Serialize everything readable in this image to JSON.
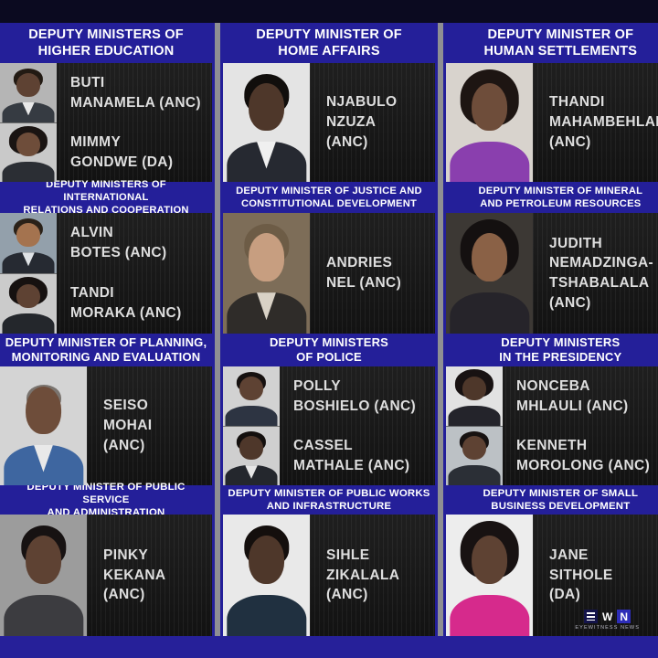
{
  "branding": {
    "logo_letters": [
      "E",
      "W",
      "N"
    ],
    "tagline": "EYEWITNESS NEWS"
  },
  "colors": {
    "page_blue": "#241f99",
    "header_blue": "#241f99",
    "top_strip": "#0b0a20",
    "bottom_strip": "#262099",
    "divider_gray": "#8f8f93",
    "panel_dark": "#161616",
    "header_text": "#ffffff",
    "name_text": "#dedede"
  },
  "columns": [
    {
      "sections": [
        {
          "title_lines": [
            "DEPUTY MINISTERS OF",
            "HIGHER EDUCATION"
          ],
          "members": [
            {
              "name_lines": [
                "BUTI",
                "MANAMELA (ANC)"
              ],
              "party": "ANC",
              "portrait": {
                "bg": "#b5b5b5",
                "skin": "#5e4233",
                "hair": "#221a13",
                "top": "#363b42",
                "shirt": "#e8e8e8",
                "style": "normal"
              }
            },
            {
              "name_lines": [
                "MIMMY",
                "GONDWE (DA)"
              ],
              "party": "DA",
              "portrait": {
                "bg": "#c9c9c9",
                "skin": "#6e4d3a",
                "hair": "#1a1412",
                "top": "#2b2e34",
                "style": "big"
              }
            }
          ]
        },
        {
          "title_lines": [
            "DEPUTY MINISTERS OF INTERNATIONAL",
            "RELATIONS AND COOPERATION"
          ],
          "members": [
            {
              "name_lines": [
                "ALVIN",
                "BOTES (ANC)"
              ],
              "party": "ANC",
              "portrait": {
                "bg": "#93a0ab",
                "skin": "#a4734f",
                "hair": "#2a2118",
                "top": "#262a32",
                "shirt": "#dfe3e6",
                "style": "normal"
              }
            },
            {
              "name_lines": [
                "TANDI",
                "MORAKA (ANC)"
              ],
              "party": "ANC",
              "portrait": {
                "bg": "#cbcbcb",
                "skin": "#5e4233",
                "hair": "#161110",
                "top": "#24272c",
                "style": "big"
              }
            }
          ]
        },
        {
          "title_lines": [
            "DEPUTY MINISTER OF PLANNING,",
            "MONITORING AND EVALUATION"
          ],
          "members": [
            {
              "name_lines": [
                "SEISO",
                "MOHAI",
                "(ANC)"
              ],
              "party": "ANC",
              "portrait": {
                "bg": "#d4d4d4",
                "skin": "#6e4d3a",
                "hair": "#30241b",
                "top": "#3e66a0",
                "shirt": "#e9e9e9",
                "style": "bald"
              }
            }
          ]
        },
        {
          "title_lines": [
            "DEPUTY MINISTER OF PUBLIC SERVICE",
            "AND ADMINISTRATION"
          ],
          "members": [
            {
              "name_lines": [
                "PINKY",
                "KEKANA",
                "(ANC)"
              ],
              "party": "ANC",
              "portrait": {
                "bg": "#9c9c9c",
                "skin": "#5e4233",
                "hair": "#171212",
                "top": "#3c3c40",
                "style": "normal"
              }
            }
          ]
        }
      ]
    },
    {
      "sections": [
        {
          "title_lines": [
            "DEPUTY MINISTER OF",
            "HOME AFFAIRS"
          ],
          "members": [
            {
              "name_lines": [
                "NJABULO",
                "NZUZA",
                "(ANC)"
              ],
              "party": "ANC",
              "portrait": {
                "bg": "#e4e4e4",
                "skin": "#4e372a",
                "hair": "#110e0c",
                "top": "#262931",
                "shirt": "#f0f0f0",
                "style": "normal"
              }
            }
          ]
        },
        {
          "title_lines": [
            "DEPUTY MINISTER OF JUSTICE AND",
            "CONSTITUTIONAL DEVELOPMENT"
          ],
          "members": [
            {
              "name_lines": [
                "ANDRIES",
                "NEL (ANC)"
              ],
              "party": "ANC",
              "portrait": {
                "bg": "#7d6d58",
                "skin": "#c79e80",
                "hair": "#6d5c46",
                "top": "#2f2c29",
                "shirt": "#d9d2c6",
                "style": "normal"
              }
            }
          ]
        },
        {
          "title_lines": [
            "DEPUTY MINISTERS",
            "OF POLICE"
          ],
          "members": [
            {
              "name_lines": [
                "POLLY",
                "BOSHIELO (ANC)"
              ],
              "party": "ANC",
              "portrait": {
                "bg": "#d2d2d2",
                "skin": "#5e4233",
                "hair": "#161110",
                "top": "#2d3442",
                "style": "normal"
              }
            },
            {
              "name_lines": [
                "CASSEL",
                "MATHALE (ANC)"
              ],
              "party": "ANC",
              "portrait": {
                "bg": "#cfcfcf",
                "skin": "#4e372a",
                "hair": "#130f0d",
                "top": "#24272d",
                "shirt": "#e6e6e6",
                "style": "normal"
              }
            }
          ]
        },
        {
          "title_lines": [
            "DEPUTY MINISTER OF PUBLIC WORKS",
            "AND INFRASTRUCTURE"
          ],
          "members": [
            {
              "name_lines": [
                "SIHLE",
                "ZIKALALA",
                "(ANC)"
              ],
              "party": "ANC",
              "portrait": {
                "bg": "#e9e9e9",
                "skin": "#4e372a",
                "hair": "#140f0d",
                "top": "#203040",
                "style": "normal"
              }
            }
          ]
        }
      ]
    },
    {
      "sections": [
        {
          "title_lines": [
            "DEPUTY MINISTER OF",
            "HUMAN SETTLEMENTS"
          ],
          "members": [
            {
              "name_lines": [
                "THANDI",
                "MAHAMBEHLALA",
                "(ANC)"
              ],
              "party": "ANC",
              "portrait": {
                "bg": "#d8d3cd",
                "skin": "#6e4d3a",
                "hair": "#1d1512",
                "top": "#8a3fae",
                "style": "big"
              }
            }
          ]
        },
        {
          "title_lines": [
            "DEPUTY MINISTER OF MINERAL",
            "AND PETROLEUM RESOURCES"
          ],
          "members": [
            {
              "name_lines": [
                "JUDITH",
                "NEMADZINGA-",
                "TSHABALALA",
                "(ANC)"
              ],
              "party": "ANC",
              "portrait": {
                "bg": "#3c3834",
                "skin": "#8a6146",
                "hair": "#141010",
                "top": "#26242a",
                "style": "big"
              }
            }
          ]
        },
        {
          "title_lines": [
            "DEPUTY MINISTERS",
            "IN THE PRESIDENCY"
          ],
          "members": [
            {
              "name_lines": [
                "NONCEBA",
                "MHLAULI (ANC)"
              ],
              "party": "ANC",
              "portrait": {
                "bg": "#e2e2e2",
                "skin": "#4e372a",
                "hair": "#181212",
                "top": "#24242b",
                "style": "big"
              }
            },
            {
              "name_lines": [
                "KENNETH",
                "MOROLONG (ANC)"
              ],
              "party": "ANC",
              "portrait": {
                "bg": "#bcc1c5",
                "skin": "#5e4233",
                "hair": "#171211",
                "top": "#2b2f36",
                "style": "normal"
              }
            }
          ]
        },
        {
          "title_lines": [
            "DEPUTY MINISTER OF SMALL",
            "BUSINESS DEVELOPMENT"
          ],
          "members": [
            {
              "name_lines": [
                "JANE",
                "SITHOLE",
                "(DA)"
              ],
              "party": "DA",
              "portrait": {
                "bg": "#ededed",
                "skin": "#5e4233",
                "hair": "#181212",
                "top": "#d62a8c",
                "style": "big"
              }
            }
          ]
        }
      ]
    }
  ]
}
